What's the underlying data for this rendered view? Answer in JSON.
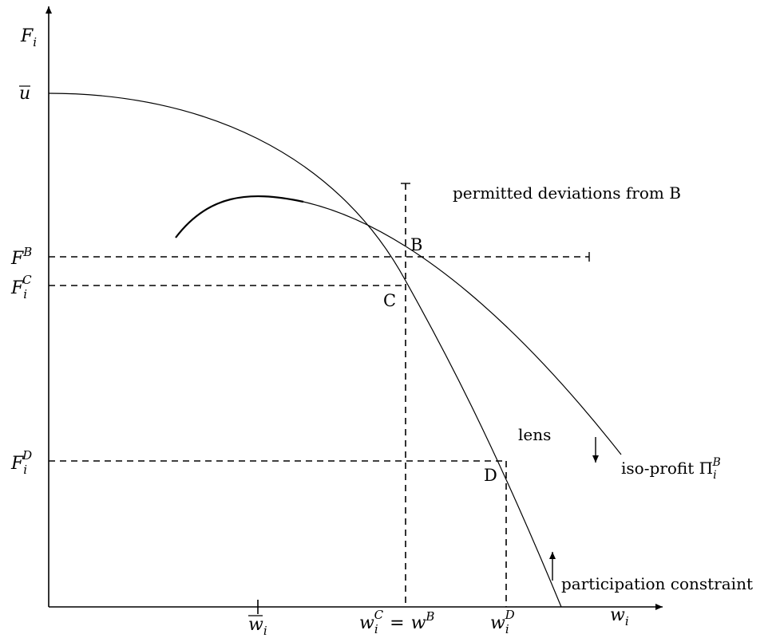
{
  "axes": {
    "y_label": {
      "base": "F",
      "sub": "i"
    },
    "x_label": {
      "base": "w",
      "sub": "i"
    }
  },
  "y_ticks": {
    "u_bar": "u",
    "F_B": {
      "base": "F",
      "sup": "B"
    },
    "F_C": {
      "base": "F",
      "sub": "i",
      "sup": "C"
    },
    "F_D": {
      "base": "F",
      "sub": "i",
      "sup": "D"
    }
  },
  "x_ticks": {
    "w_bar": {
      "base": "w",
      "sub": "i"
    },
    "w_C_eq": {
      "base": "w",
      "sub": "i",
      "sup": "C",
      "eq": "=",
      "base2": "w",
      "sup2": "B"
    },
    "w_D": {
      "base": "w",
      "sub": "i",
      "sup": "D"
    }
  },
  "points": {
    "B": "B",
    "C": "C",
    "D": "D"
  },
  "labels": {
    "permitted": "permitted deviations from B",
    "lens": "lens",
    "isoprofit_prefix": "iso-profit ",
    "isoprofit_pi": "Π",
    "isoprofit_sub": "i",
    "isoprofit_sup": "B",
    "participation": "participation constraint"
  }
}
